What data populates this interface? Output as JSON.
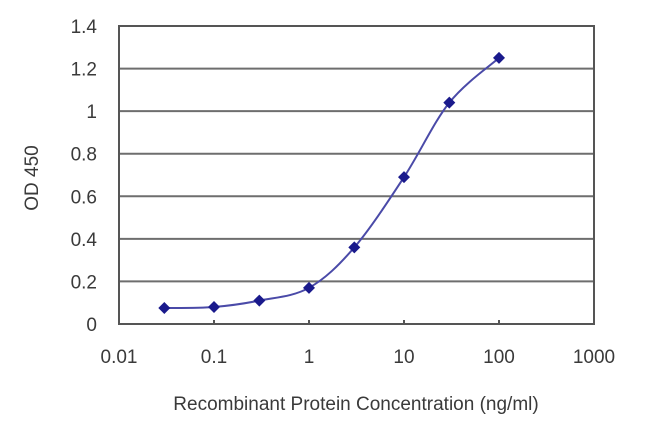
{
  "chart_data": {
    "type": "line",
    "title": "",
    "xlabel": "Recombinant Protein Concentration (ng/ml)",
    "ylabel": "OD 450",
    "xscale": "log",
    "xlim": [
      0.01,
      1000
    ],
    "ylim": [
      0,
      1.4
    ],
    "grid": {
      "horizontal": true,
      "vertical": false
    },
    "legend": null,
    "x_ticks": [
      "0.01",
      "0.1",
      "1",
      "10",
      "100",
      "1000"
    ],
    "y_ticks": [
      "0",
      "0.2",
      "0.4",
      "0.6",
      "0.8",
      "1",
      "1.2",
      "1.4"
    ],
    "series": [
      {
        "name": "OD 450",
        "color": "#1a1a8c",
        "marker": "diamond",
        "x": [
          0.03,
          0.1,
          0.3,
          1,
          3,
          10,
          30,
          100
        ],
        "values": [
          0.075,
          0.08,
          0.11,
          0.17,
          0.36,
          0.69,
          1.04,
          1.25
        ]
      }
    ]
  },
  "colors": {
    "series": "#1a1a8c",
    "curve": "#4a4aa8",
    "gridline": "#6e6e6e",
    "frame": "#555555",
    "text": "#3a3a3a"
  }
}
